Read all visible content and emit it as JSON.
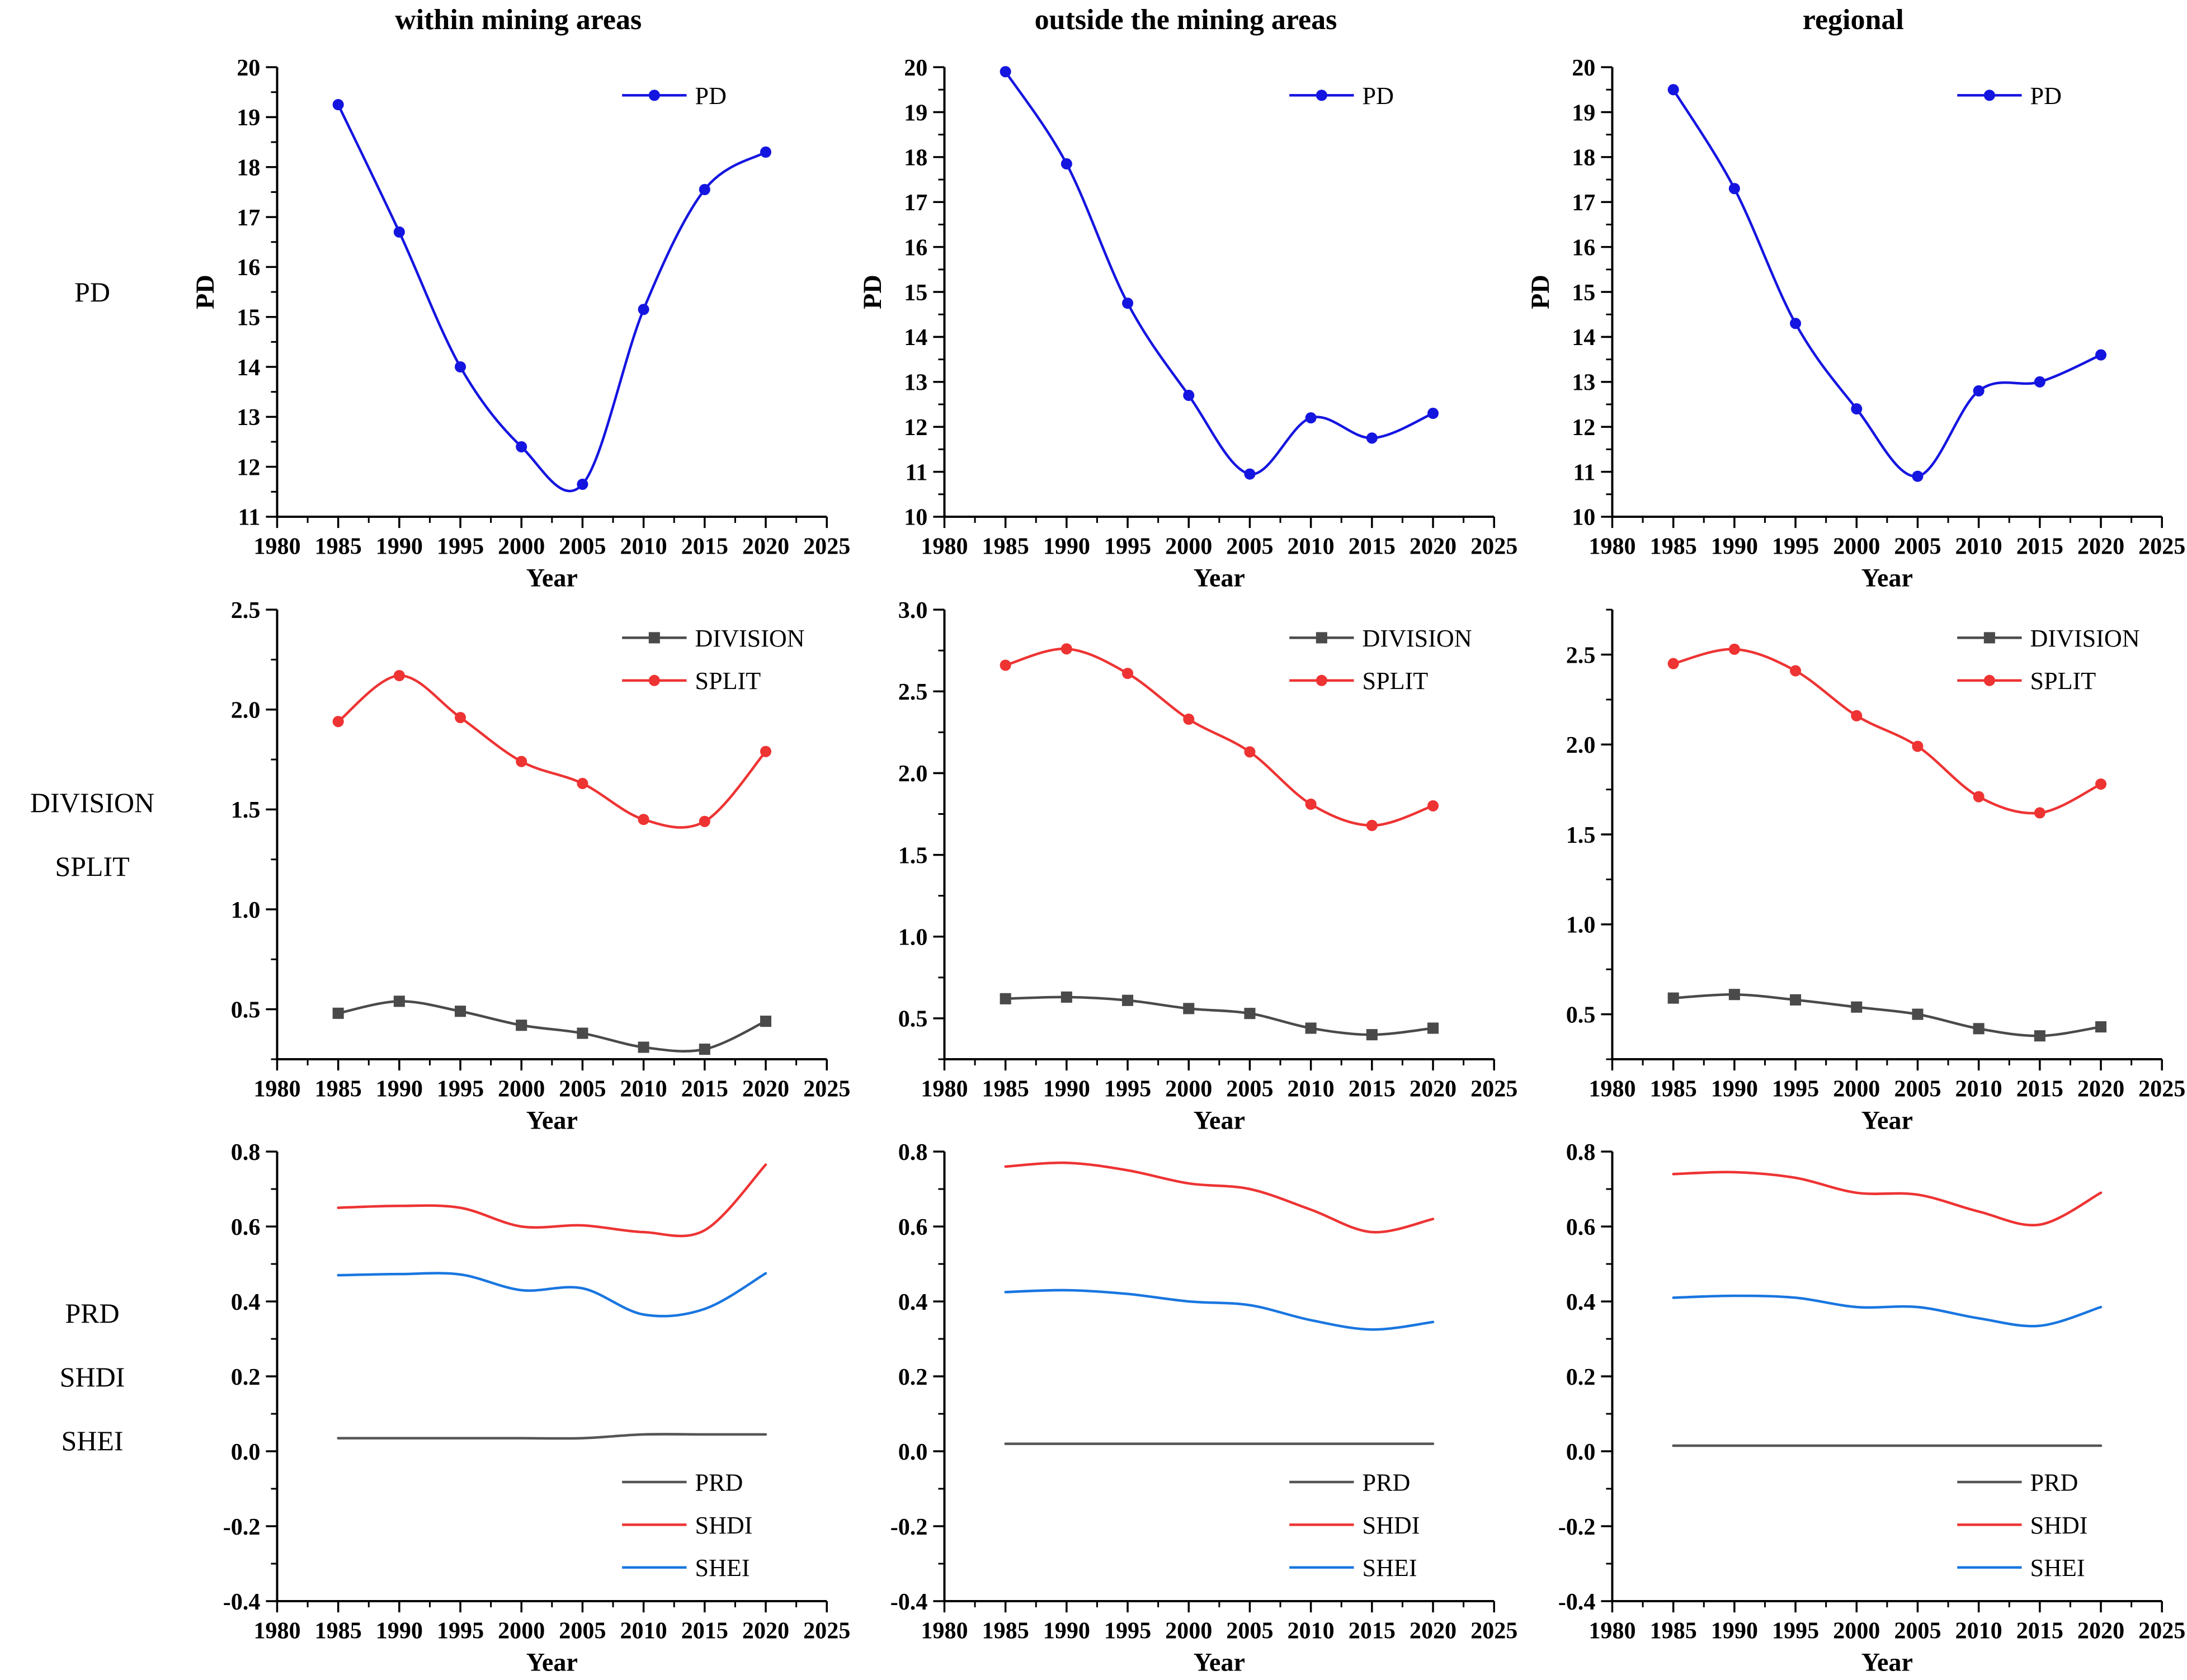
{
  "style": {
    "background": "#ffffff",
    "axis_color": "#000000",
    "blue": "#1515E0",
    "red": "#EE3333",
    "gray": "#4A4A4A",
    "prd_gray": "#555555"
  },
  "columns": [
    {
      "title": "within mining areas"
    },
    {
      "title": "outside the mining areas"
    },
    {
      "title": "regional"
    }
  ],
  "rows": [
    {
      "labels": [
        "PD"
      ]
    },
    {
      "labels": [
        "DIVISION",
        "SPLIT"
      ]
    },
    {
      "labels": [
        "PRD",
        "SHDI",
        "SHEI"
      ]
    }
  ],
  "x_axis": {
    "label": "Year",
    "min": 1980,
    "max": 2025,
    "tick_values": [
      1980,
      1985,
      1990,
      1995,
      2000,
      2005,
      2010,
      2015,
      2020,
      2025
    ],
    "tick_labels": [
      "1980",
      "1985",
      "1990",
      "1995",
      "2000",
      "2005",
      "2010",
      "2015",
      "2020",
      "2025"
    ],
    "minor_step": 2.5
  },
  "chart_data": [
    {
      "type": "line",
      "title": "within mining areas",
      "xlabel": "Year",
      "ylabel": "PD",
      "x": [
        1985,
        1990,
        1995,
        2000,
        2005,
        2010,
        2015,
        2020
      ],
      "ylim": [
        11,
        20
      ],
      "ytick_values": [
        11,
        12,
        13,
        14,
        15,
        16,
        17,
        18,
        19,
        20
      ],
      "ytick_labels": [
        "11",
        "12",
        "13",
        "14",
        "15",
        "16",
        "17",
        "18",
        "19",
        "20"
      ],
      "legend": {
        "position": "top-right"
      },
      "series": [
        {
          "name": "PD",
          "color": "#1515E0",
          "marker": "circle",
          "values": [
            19.25,
            16.7,
            14.0,
            12.4,
            11.65,
            15.15,
            17.55,
            18.3
          ]
        }
      ]
    },
    {
      "type": "line",
      "title": "outside the mining areas",
      "xlabel": "Year",
      "ylabel": "PD",
      "x": [
        1985,
        1990,
        1995,
        2000,
        2005,
        2010,
        2015,
        2020
      ],
      "ylim": [
        10,
        20
      ],
      "ytick_values": [
        10,
        11,
        12,
        13,
        14,
        15,
        16,
        17,
        18,
        19,
        20
      ],
      "ytick_labels": [
        "10",
        "11",
        "12",
        "13",
        "14",
        "15",
        "16",
        "17",
        "18",
        "19",
        "20"
      ],
      "legend": {
        "position": "top-right"
      },
      "series": [
        {
          "name": "PD",
          "color": "#1515E0",
          "marker": "circle",
          "values": [
            19.9,
            17.85,
            14.75,
            12.7,
            10.95,
            12.2,
            11.75,
            12.3
          ]
        }
      ]
    },
    {
      "type": "line",
      "title": "regional",
      "xlabel": "Year",
      "ylabel": "PD",
      "x": [
        1985,
        1990,
        1995,
        2000,
        2005,
        2010,
        2015,
        2020
      ],
      "ylim": [
        10,
        20
      ],
      "ytick_values": [
        10,
        11,
        12,
        13,
        14,
        15,
        16,
        17,
        18,
        19,
        20
      ],
      "ytick_labels": [
        "10",
        "11",
        "12",
        "13",
        "14",
        "15",
        "16",
        "17",
        "18",
        "19",
        "20"
      ],
      "legend": {
        "position": "top-right"
      },
      "series": [
        {
          "name": "PD",
          "color": "#1515E0",
          "marker": "circle",
          "values": [
            19.5,
            17.3,
            14.3,
            12.4,
            10.9,
            12.8,
            13.0,
            13.6
          ]
        }
      ]
    },
    {
      "type": "line",
      "title": "within mining areas",
      "xlabel": "Year",
      "ylabel": null,
      "x": [
        1985,
        1990,
        1995,
        2000,
        2005,
        2010,
        2015,
        2020
      ],
      "ylim": [
        0.25,
        2.5
      ],
      "ytick_values": [
        0.5,
        1.0,
        1.5,
        2.0,
        2.5
      ],
      "ytick_labels": [
        "0.5",
        "1.0",
        "1.5",
        "2.0",
        "2.5"
      ],
      "legend": {
        "position": "top-right"
      },
      "series": [
        {
          "name": "DIVISION",
          "color": "#4A4A4A",
          "marker": "square",
          "values": [
            0.48,
            0.54,
            0.49,
            0.42,
            0.38,
            0.31,
            0.3,
            0.44
          ]
        },
        {
          "name": "SPLIT",
          "color": "#EE3333",
          "marker": "circle",
          "values": [
            1.94,
            2.17,
            1.96,
            1.74,
            1.63,
            1.45,
            1.44,
            1.79
          ]
        }
      ]
    },
    {
      "type": "line",
      "title": "outside the mining areas",
      "xlabel": "Year",
      "ylabel": null,
      "x": [
        1985,
        1990,
        1995,
        2000,
        2005,
        2010,
        2015,
        2020
      ],
      "ylim": [
        0.25,
        3.0
      ],
      "ytick_values": [
        0.5,
        1.0,
        1.5,
        2.0,
        2.5,
        3.0
      ],
      "ytick_labels": [
        "0.5",
        "1.0",
        "1.5",
        "2.0",
        "2.5",
        "3.0"
      ],
      "legend": {
        "position": "top-right"
      },
      "series": [
        {
          "name": "DIVISION",
          "color": "#4A4A4A",
          "marker": "square",
          "values": [
            0.62,
            0.63,
            0.61,
            0.56,
            0.53,
            0.44,
            0.4,
            0.44
          ]
        },
        {
          "name": "SPLIT",
          "color": "#EE3333",
          "marker": "circle",
          "values": [
            2.66,
            2.76,
            2.61,
            2.33,
            2.13,
            1.81,
            1.68,
            1.8
          ]
        }
      ]
    },
    {
      "type": "line",
      "title": "regional",
      "xlabel": "Year",
      "ylabel": null,
      "x": [
        1985,
        1990,
        1995,
        2000,
        2005,
        2010,
        2015,
        2020
      ],
      "ylim": [
        0.25,
        2.75
      ],
      "ytick_values": [
        0.5,
        1.0,
        1.5,
        2.0,
        2.5
      ],
      "ytick_labels": [
        "0.5",
        "1.0",
        "1.5",
        "2.0",
        "2.5"
      ],
      "legend": {
        "position": "top-right"
      },
      "series": [
        {
          "name": "DIVISION",
          "color": "#4A4A4A",
          "marker": "square",
          "values": [
            0.59,
            0.61,
            0.58,
            0.54,
            0.5,
            0.42,
            0.38,
            0.43
          ]
        },
        {
          "name": "SPLIT",
          "color": "#EE3333",
          "marker": "circle",
          "values": [
            2.45,
            2.53,
            2.41,
            2.16,
            1.99,
            1.71,
            1.62,
            1.78
          ]
        }
      ]
    },
    {
      "type": "line",
      "title": "within mining areas",
      "xlabel": "Year",
      "ylabel": null,
      "x": [
        1985,
        1990,
        1995,
        2000,
        2005,
        2010,
        2015,
        2020
      ],
      "ylim": [
        -0.4,
        0.8
      ],
      "ytick_values": [
        -0.4,
        -0.2,
        0.0,
        0.2,
        0.4,
        0.6,
        0.8
      ],
      "ytick_labels": [
        "-0.4",
        "-0.2",
        "0.0",
        "0.2",
        "0.4",
        "0.6",
        "0.8"
      ],
      "legend": {
        "position": "bottom-right"
      },
      "series": [
        {
          "name": "PRD",
          "color": "#555555",
          "marker": null,
          "values": [
            0.035,
            0.035,
            0.035,
            0.035,
            0.035,
            0.045,
            0.045,
            0.045
          ]
        },
        {
          "name": "SHDI",
          "color": "#EE3333",
          "marker": null,
          "values": [
            0.65,
            0.655,
            0.65,
            0.6,
            0.603,
            0.585,
            0.59,
            0.765
          ]
        },
        {
          "name": "SHEI",
          "color": "#1976E0",
          "marker": null,
          "values": [
            0.47,
            0.473,
            0.472,
            0.43,
            0.435,
            0.365,
            0.38,
            0.475
          ]
        }
      ]
    },
    {
      "type": "line",
      "title": "outside the mining areas",
      "xlabel": "Year",
      "ylabel": null,
      "x": [
        1985,
        1990,
        1995,
        2000,
        2005,
        2010,
        2015,
        2020
      ],
      "ylim": [
        -0.4,
        0.8
      ],
      "ytick_values": [
        -0.4,
        -0.2,
        0.0,
        0.2,
        0.4,
        0.6,
        0.8
      ],
      "ytick_labels": [
        "-0.4",
        "-0.2",
        "0.0",
        "0.2",
        "0.4",
        "0.6",
        "0.8"
      ],
      "legend": {
        "position": "bottom-right"
      },
      "series": [
        {
          "name": "PRD",
          "color": "#555555",
          "marker": null,
          "values": [
            0.02,
            0.02,
            0.02,
            0.02,
            0.02,
            0.02,
            0.02,
            0.02
          ]
        },
        {
          "name": "SHDI",
          "color": "#EE3333",
          "marker": null,
          "values": [
            0.76,
            0.77,
            0.75,
            0.715,
            0.7,
            0.645,
            0.585,
            0.62
          ]
        },
        {
          "name": "SHEI",
          "color": "#1976E0",
          "marker": null,
          "values": [
            0.425,
            0.43,
            0.42,
            0.4,
            0.39,
            0.35,
            0.325,
            0.345
          ]
        }
      ]
    },
    {
      "type": "line",
      "title": "regional",
      "xlabel": "Year",
      "ylabel": null,
      "x": [
        1985,
        1990,
        1995,
        2000,
        2005,
        2010,
        2015,
        2020
      ],
      "ylim": [
        -0.4,
        0.8
      ],
      "ytick_values": [
        -0.4,
        -0.2,
        0.0,
        0.2,
        0.4,
        0.6,
        0.8
      ],
      "ytick_labels": [
        "-0.4",
        "-0.2",
        "0.0",
        "0.2",
        "0.4",
        "0.6",
        "0.8"
      ],
      "legend": {
        "position": "bottom-right"
      },
      "series": [
        {
          "name": "PRD",
          "color": "#555555",
          "marker": null,
          "values": [
            0.015,
            0.015,
            0.015,
            0.015,
            0.015,
            0.015,
            0.015,
            0.015
          ]
        },
        {
          "name": "SHDI",
          "color": "#EE3333",
          "marker": null,
          "values": [
            0.74,
            0.745,
            0.73,
            0.69,
            0.685,
            0.64,
            0.605,
            0.69
          ]
        },
        {
          "name": "SHEI",
          "color": "#1976E0",
          "marker": null,
          "values": [
            0.41,
            0.415,
            0.41,
            0.385,
            0.385,
            0.355,
            0.335,
            0.385
          ]
        }
      ]
    }
  ]
}
